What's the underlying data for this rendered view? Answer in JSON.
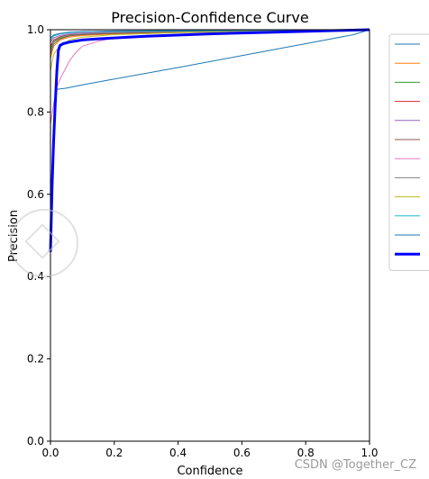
{
  "chart_data": {
    "type": "line",
    "title": "Precision-Confidence Curve",
    "xlabel": "Confidence",
    "ylabel": "Precision",
    "xlim": [
      0,
      1
    ],
    "ylim": [
      0,
      1
    ],
    "x_ticks": [
      "0.0",
      "0.2",
      "0.4",
      "0.6",
      "0.8",
      "1.0"
    ],
    "y_ticks": [
      "0.0",
      "0.2",
      "0.4",
      "0.6",
      "0.8",
      "1.0"
    ],
    "grid": false,
    "legend": {
      "placement": "right",
      "entries": 12
    },
    "series": [
      {
        "color": "#1f77b4",
        "x": [
          0.02,
          0.05,
          0.1,
          0.2,
          0.4,
          0.6,
          0.8,
          0.95,
          1.0
        ],
        "y": [
          0.855,
          0.858,
          0.866,
          0.88,
          0.908,
          0.937,
          0.966,
          0.988,
          1.0
        ]
      },
      {
        "color": "#ff7f0e",
        "x": [
          0.0,
          0.01,
          0.03,
          0.06,
          0.1,
          0.2,
          0.4,
          0.7,
          1.0
        ],
        "y": [
          0.93,
          0.96,
          0.975,
          0.982,
          0.986,
          0.99,
          0.994,
          0.997,
          1.0
        ]
      },
      {
        "color": "#2ca02c",
        "x": [
          0.0,
          0.01,
          0.03,
          0.06,
          0.1,
          0.2,
          0.4,
          0.7,
          1.0
        ],
        "y": [
          0.95,
          0.97,
          0.98,
          0.985,
          0.989,
          0.992,
          0.995,
          0.998,
          1.0
        ]
      },
      {
        "color": "#d62728",
        "x": [
          0.0,
          0.01,
          0.03,
          0.06,
          0.1,
          0.2,
          0.4,
          0.7,
          1.0
        ],
        "y": [
          0.96,
          0.975,
          0.983,
          0.988,
          0.99,
          0.993,
          0.996,
          0.998,
          1.0
        ]
      },
      {
        "color": "#9467bd",
        "x": [
          0.0,
          0.01,
          0.03,
          0.06,
          0.1,
          0.2,
          0.4,
          0.7,
          1.0
        ],
        "y": [
          0.97,
          0.98,
          0.986,
          0.99,
          0.992,
          0.994,
          0.996,
          0.998,
          1.0
        ]
      },
      {
        "color": "#8c564b",
        "x": [
          0.0,
          0.01,
          0.03,
          0.06,
          0.1,
          0.2,
          0.4,
          0.7,
          1.0
        ],
        "y": [
          0.94,
          0.965,
          0.978,
          0.985,
          0.988,
          0.991,
          0.994,
          0.997,
          1.0
        ]
      },
      {
        "color": "#e377c2",
        "x": [
          0.0,
          0.01,
          0.02,
          0.03,
          0.04,
          0.05,
          0.06,
          0.08,
          0.1,
          0.15,
          0.2,
          0.3,
          0.5,
          0.7,
          1.0
        ],
        "y": [
          0.77,
          0.82,
          0.86,
          0.88,
          0.895,
          0.91,
          0.925,
          0.945,
          0.96,
          0.972,
          0.98,
          0.986,
          0.992,
          0.996,
          1.0
        ]
      },
      {
        "color": "#7f7f7f",
        "x": [
          0.0,
          0.01,
          0.03,
          0.06,
          0.1,
          0.2,
          0.4,
          0.7,
          1.0
        ],
        "y": [
          0.955,
          0.972,
          0.982,
          0.987,
          0.99,
          0.993,
          0.996,
          0.998,
          1.0
        ]
      },
      {
        "color": "#bcbd22",
        "x": [
          0.0,
          0.01,
          0.03,
          0.06,
          0.1,
          0.2,
          0.4,
          0.7,
          1.0
        ],
        "y": [
          0.9,
          0.94,
          0.962,
          0.975,
          0.982,
          0.988,
          0.993,
          0.997,
          1.0
        ]
      },
      {
        "color": "#17becf",
        "x": [
          0.0,
          0.01,
          0.03,
          0.06,
          0.1,
          0.2,
          0.4,
          0.7,
          1.0
        ],
        "y": [
          0.975,
          0.985,
          0.99,
          0.993,
          0.995,
          0.996,
          0.997,
          0.999,
          1.0
        ]
      },
      {
        "color": "#1f77b4",
        "x": [
          0.0,
          0.01,
          0.03,
          0.06,
          0.1,
          0.2,
          0.4,
          0.7,
          1.0
        ],
        "y": [
          0.98,
          0.987,
          0.991,
          0.994,
          0.995,
          0.997,
          0.998,
          0.999,
          1.0
        ]
      },
      {
        "color": "#0000ff",
        "bold": true,
        "x": [
          0.0,
          0.005,
          0.01,
          0.015,
          0.02,
          0.025,
          0.03,
          0.04,
          0.06,
          0.1,
          0.15,
          0.2,
          0.3,
          0.5,
          0.7,
          0.9,
          1.0
        ],
        "y": [
          0.46,
          0.62,
          0.73,
          0.82,
          0.9,
          0.95,
          0.962,
          0.966,
          0.97,
          0.975,
          0.978,
          0.98,
          0.984,
          0.99,
          0.994,
          0.998,
          1.0
        ]
      }
    ]
  },
  "watermark": "CSDN @Together_CZ"
}
